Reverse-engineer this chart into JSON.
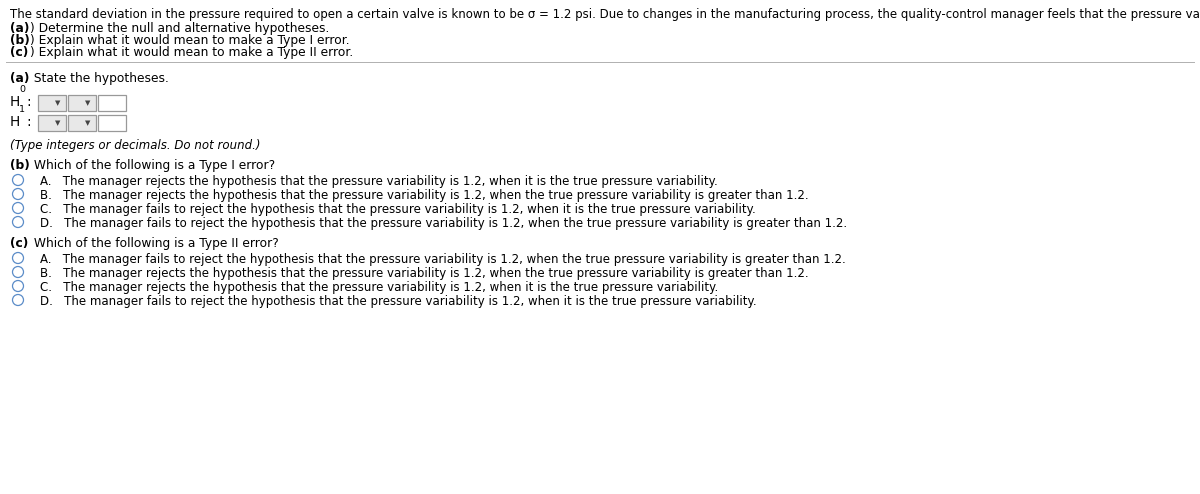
{
  "bg_color": "#ffffff",
  "text_color": "#000000",
  "intro_text": "The standard deviation in the pressure required to open a certain valve is known to be σ = 1.2 psi. Due to changes in the manufacturing process, the quality-control manager feels that the pressure variability has increased.",
  "sub_items": [
    " (a) Determine the null and alternative hypotheses.",
    " (b) Explain what it would mean to make a Type I error.",
    " (c) Explain what it would mean to make a Type II error."
  ],
  "sub_items_bold": [
    "(a)",
    "(b)",
    "(c)"
  ],
  "section_a_header_bold": "(a)",
  "section_a_header_rest": " State the hypotheses.",
  "h0_label": "H",
  "h0_sub": "0",
  "h1_label": "H",
  "h1_sub": "1",
  "hint_text": "(Type integers or decimals. Do not round.)",
  "section_b_bold": "(b)",
  "section_b_rest": " Which of the following is a Type I error?",
  "type1_options": [
    "A.   The manager rejects the hypothesis that the pressure variability is 1.2, when it is the true pressure variability.",
    "B.   The manager rejects the hypothesis that the pressure variability is 1.2, when the true pressure variability is greater than 1.2.",
    "C.   The manager fails to reject the hypothesis that the pressure variability is 1.2, when it is the true pressure variability.",
    "D.   The manager fails to reject the hypothesis that the pressure variability is 1.2, when the true pressure variability is greater than 1.2."
  ],
  "section_c_bold": "(c)",
  "section_c_rest": " Which of the following is a Type II error?",
  "type2_options": [
    "A.   The manager fails to reject the hypothesis that the pressure variability is 1.2, when the true pressure variability is greater than 1.2.",
    "B.   The manager rejects the hypothesis that the pressure variability is 1.2, when the true pressure variability is greater than 1.2.",
    "C.   The manager rejects the hypothesis that the pressure variability is 1.2, when it is the true pressure variability.",
    "D.   The manager fails to reject the hypothesis that the pressure variability is 1.2, when it is the true pressure variability."
  ],
  "circle_color": "#5b8cc8",
  "separator_color": "#b0b0b0",
  "dropdown_bg": "#e8e8e8",
  "dropdown_border": "#999999"
}
